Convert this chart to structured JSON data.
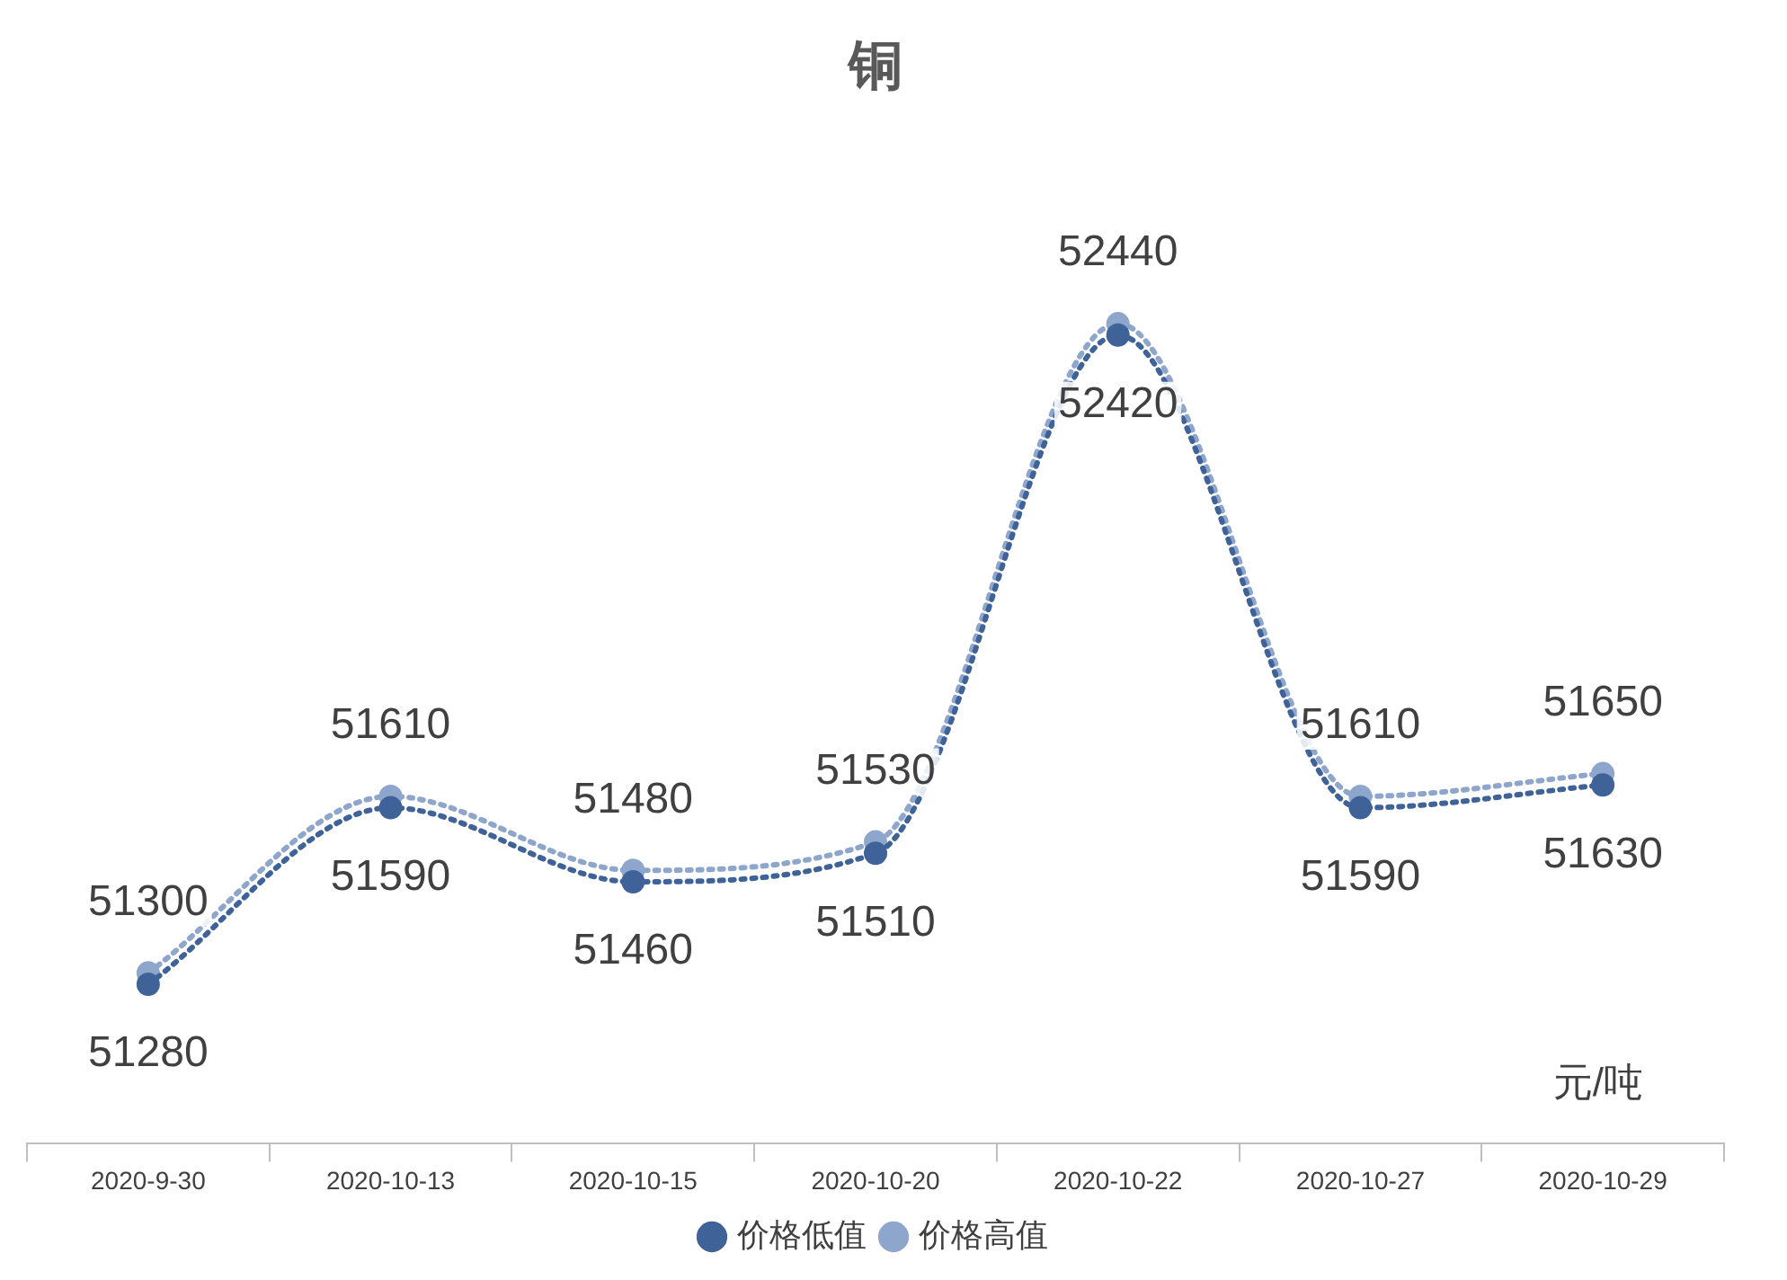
{
  "chart_data": {
    "type": "line",
    "title": "铜",
    "categories": [
      "2020-9-30",
      "2020-10-13",
      "2020-10-15",
      "2020-10-20",
      "2020-10-22",
      "2020-10-27",
      "2020-10-29"
    ],
    "series": [
      {
        "name": "价格低值",
        "color": "#3f6399",
        "values": [
          51280,
          51590,
          51460,
          51510,
          52420,
          51590,
          51630
        ]
      },
      {
        "name": "价格高值",
        "color": "#8ea6cc",
        "values": [
          51300,
          51610,
          51480,
          51530,
          52440,
          51610,
          51650
        ]
      }
    ],
    "data_labels": true,
    "legend": "bottom",
    "marker": "circle",
    "line_style": "dotted",
    "annotations": [
      "元/吨"
    ]
  }
}
